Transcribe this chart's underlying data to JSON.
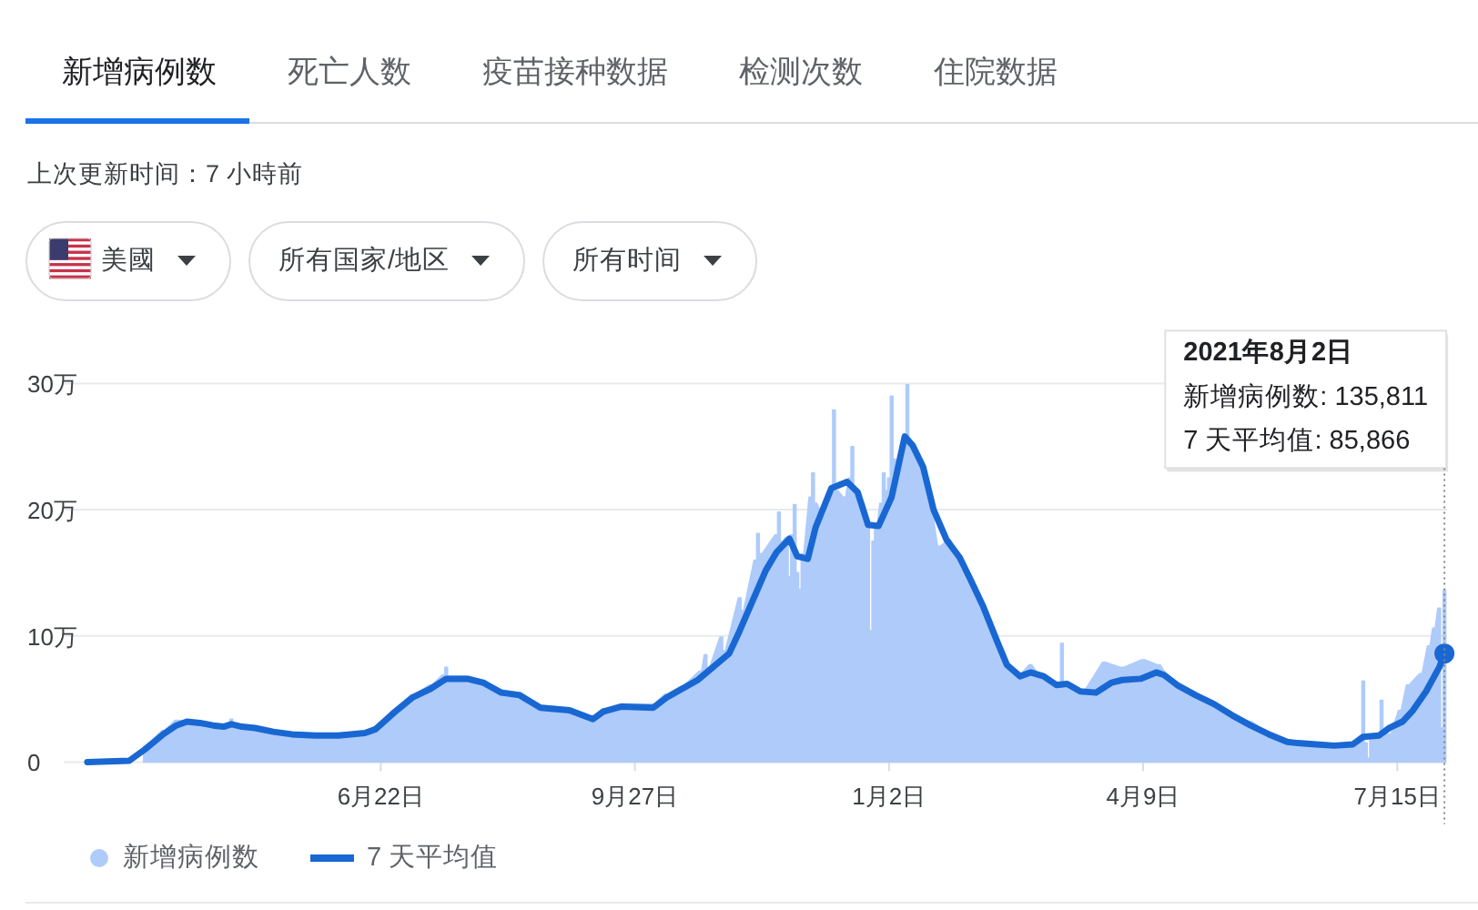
{
  "chart_data": {
    "type": "line",
    "annotations": [
      "新增病例数",
      "死亡人数",
      "疫苗接种数据",
      "检测次数",
      "住院数据",
      "上次更新时间：7 小時前",
      "美國",
      "所有国家/地区",
      "所有时间",
      "2021年8月2日",
      "新增病例数: 135,811",
      "7 天平均值: 85,866"
    ],
    "xlim": [
      "2020-02-22",
      "2021-08-03"
    ],
    "xticks": [
      {
        "value": "2020-06-22",
        "label": "6月22日"
      },
      {
        "value": "2020-09-27",
        "label": "9月27日"
      },
      {
        "value": "2021-01-02",
        "label": "1月2日"
      },
      {
        "value": "2021-04-09",
        "label": "4月9日"
      },
      {
        "value": "2021-07-15",
        "label": "7月15日"
      }
    ],
    "ylim": [
      0,
      30
    ],
    "yticks": [
      0,
      {
        "value": 10,
        "label": "10万"
      },
      {
        "value": 20,
        "label": "20万"
      },
      {
        "value": 30,
        "label": "30万"
      }
    ],
    "grid": "y",
    "legend": "bottom",
    "series": [
      {
        "name": "新增病例数",
        "type": "area",
        "color": "#aecbfa",
        "x": [
          "2020-03-24",
          "2020-03-31",
          "2020-04-05",
          "2020-04-10",
          "2020-04-14",
          "2020-04-21",
          "2020-04-25",
          "2020-04-26",
          "2020-04-27",
          "2020-05-05",
          "2020-05-12",
          "2020-05-28",
          "2020-06-16",
          "2020-06-20",
          "2020-06-27",
          "2020-07-04",
          "2020-07-11",
          "2020-07-16",
          "2020-07-17",
          "2020-07-18",
          "2020-07-25",
          "2020-07-31",
          "2020-08-07",
          "2020-08-14",
          "2020-08-22",
          "2020-09-02",
          "2020-09-11",
          "2020-09-15",
          "2020-09-22",
          "2020-10-04",
          "2020-10-09",
          "2020-10-15",
          "2020-10-22",
          "2020-10-24",
          "2020-10-25",
          "2020-10-30",
          "2020-10-31",
          "2020-11-06",
          "2020-11-07",
          "2020-11-12",
          "2020-11-13",
          "2020-11-14",
          "2020-11-20",
          "2020-11-21",
          "2020-11-22",
          "2020-11-24",
          "2020-11-25",
          "2020-11-26",
          "2020-11-27",
          "2020-11-28",
          "2020-11-29",
          "2020-11-30",
          "2020-12-03",
          "2020-12-04",
          "2020-12-05",
          "2020-12-08",
          "2020-12-11",
          "2020-12-12",
          "2020-12-13",
          "2020-12-16",
          "2020-12-18",
          "2020-12-19",
          "2020-12-20",
          "2020-12-23",
          "2020-12-25",
          "2020-12-26",
          "2020-12-27",
          "2020-12-28",
          "2020-12-30",
          "2020-12-31",
          "2021-01-01",
          "2021-01-02",
          "2021-01-03",
          "2021-01-04",
          "2021-01-05",
          "2021-01-08",
          "2021-01-09",
          "2021-01-10",
          "2021-01-12",
          "2021-01-17",
          "2021-01-21",
          "2021-01-25",
          "2021-01-30",
          "2021-02-05",
          "2021-02-12",
          "2021-02-16",
          "2021-02-21",
          "2021-02-25",
          "2021-03-02",
          "2021-03-08",
          "2021-03-09",
          "2021-03-10",
          "2021-03-17",
          "2021-03-25",
          "2021-04-01",
          "2021-04-09",
          "2021-04-15",
          "2021-04-22",
          "2021-04-29",
          "2021-05-06",
          "2021-05-13",
          "2021-05-20",
          "2021-05-27",
          "2021-06-03",
          "2021-06-10",
          "2021-06-17",
          "2021-06-26",
          "2021-07-01",
          "2021-07-02",
          "2021-07-03",
          "2021-07-04",
          "2021-07-05",
          "2021-07-08",
          "2021-07-09",
          "2021-07-10",
          "2021-07-12",
          "2021-07-16",
          "2021-07-19",
          "2021-07-24",
          "2021-07-27",
          "2021-07-29",
          "2021-07-31",
          "2021-08-01",
          "2021-08-02"
        ],
        "values": [
          1.2,
          2.5,
          3.3,
          3.2,
          3.0,
          2.8,
          2.9,
          3.4,
          2.8,
          2.7,
          2.5,
          2.2,
          2.4,
          2.8,
          4.1,
          5.3,
          6.1,
          6.9,
          7.5,
          6.8,
          6.8,
          6.5,
          5.7,
          5.5,
          4.5,
          4.3,
          3.6,
          4.2,
          4.6,
          4.6,
          5.4,
          6.0,
          7.2,
          8.5,
          7.5,
          9.9,
          8.8,
          13.0,
          12.0,
          16.0,
          18.1,
          16.5,
          18.0,
          19.8,
          17.5,
          17.8,
          14.7,
          18.0,
          20.4,
          15.0,
          13.7,
          16.5,
          21.0,
          22.9,
          20.5,
          19.5,
          21.5,
          27.9,
          21.5,
          21.0,
          22.5,
          25.0,
          21.5,
          20.5,
          19.0,
          10.4,
          17.5,
          18.6,
          20.5,
          22.9,
          21.5,
          22.5,
          29.0,
          24.0,
          23.4,
          25.0,
          29.9,
          25.0,
          24.3,
          21.4,
          17.1,
          17.6,
          15.2,
          12.8,
          10.0,
          7.5,
          7.0,
          7.7,
          6.5,
          6.2,
          9.4,
          6.2,
          5.6,
          7.9,
          7.5,
          8.1,
          7.7,
          5.8,
          5.3,
          4.7,
          3.7,
          3.2,
          2.3,
          1.7,
          1.5,
          1.4,
          1.4,
          1.5,
          6.4,
          1.5,
          0.3,
          1.8,
          2.1,
          4.9,
          2.4,
          2.2,
          4.1,
          6.1,
          7.0,
          9.2,
          10.6,
          12.2,
          2.7,
          13.6
        ]
      },
      {
        "name": "7 天平均值",
        "color": "#1967d2",
        "x": [
          "2020-03-02",
          "2020-03-18",
          "2020-03-24",
          "2020-03-31",
          "2020-04-05",
          "2020-04-09",
          "2020-04-14",
          "2020-04-19",
          "2020-04-23",
          "2020-04-26",
          "2020-04-30",
          "2020-05-05",
          "2020-05-12",
          "2020-05-19",
          "2020-05-28",
          "2020-06-06",
          "2020-06-16",
          "2020-06-20",
          "2020-06-27",
          "2020-07-04",
          "2020-07-11",
          "2020-07-17",
          "2020-07-25",
          "2020-07-31",
          "2020-08-07",
          "2020-08-14",
          "2020-08-22",
          "2020-09-02",
          "2020-09-11",
          "2020-09-15",
          "2020-09-22",
          "2020-10-04",
          "2020-10-09",
          "2020-10-21",
          "2020-11-02",
          "2020-11-06",
          "2020-11-11",
          "2020-11-16",
          "2020-11-20",
          "2020-11-25",
          "2020-11-28",
          "2020-12-02",
          "2020-12-05",
          "2020-12-11",
          "2020-12-17",
          "2020-12-21",
          "2020-12-25",
          "2020-12-29",
          "2021-01-03",
          "2021-01-08",
          "2021-01-11",
          "2021-01-15",
          "2021-01-19",
          "2021-01-24",
          "2021-01-29",
          "2021-02-02",
          "2021-02-07",
          "2021-02-12",
          "2021-02-16",
          "2021-02-21",
          "2021-02-25",
          "2021-03-02",
          "2021-03-07",
          "2021-03-11",
          "2021-03-16",
          "2021-03-22",
          "2021-03-28",
          "2021-04-01",
          "2021-04-08",
          "2021-04-14",
          "2021-04-17",
          "2021-04-22",
          "2021-04-29",
          "2021-05-06",
          "2021-05-13",
          "2021-05-20",
          "2021-05-27",
          "2021-06-03",
          "2021-06-07",
          "2021-06-14",
          "2021-06-21",
          "2021-06-28",
          "2021-07-02",
          "2021-07-08",
          "2021-07-12",
          "2021-07-17",
          "2021-07-21",
          "2021-07-26",
          "2021-07-31",
          "2021-08-02"
        ],
        "values": [
          0,
          0.1,
          1.0,
          2.2,
          2.9,
          3.2,
          3.1,
          2.9,
          2.8,
          3.0,
          2.8,
          2.7,
          2.4,
          2.2,
          2.1,
          2.1,
          2.3,
          2.6,
          3.9,
          5.1,
          5.8,
          6.6,
          6.6,
          6.3,
          5.5,
          5.3,
          4.3,
          4.1,
          3.4,
          4.0,
          4.4,
          4.3,
          5.1,
          6.5,
          8.6,
          10.4,
          12.8,
          15.2,
          16.6,
          17.7,
          16.3,
          16.1,
          18.6,
          21.7,
          22.2,
          21.4,
          18.8,
          18.7,
          21.0,
          25.8,
          25.1,
          23.4,
          20.0,
          17.6,
          16.2,
          14.5,
          12.3,
          9.7,
          7.7,
          6.8,
          7.1,
          6.8,
          6.1,
          6.2,
          5.6,
          5.5,
          6.3,
          6.5,
          6.6,
          7.1,
          6.9,
          6.1,
          5.3,
          4.6,
          3.7,
          2.9,
          2.2,
          1.6,
          1.5,
          1.4,
          1.3,
          1.4,
          2.0,
          2.1,
          2.7,
          3.2,
          4.1,
          5.6,
          7.5,
          8.6
        ]
      }
    ]
  }
}
